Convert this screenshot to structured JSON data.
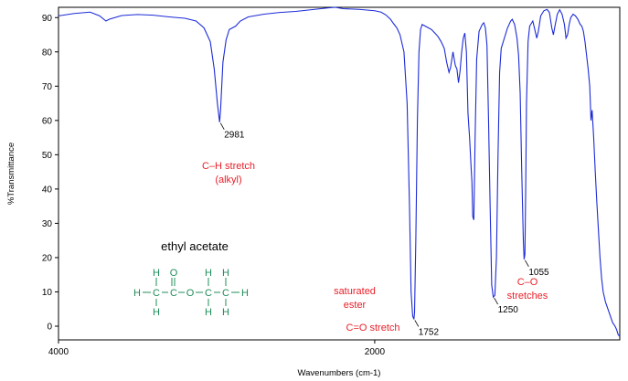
{
  "chart_data": {
    "type": "line",
    "title": "",
    "xlabel": "Wavenumbers (cm-1)",
    "ylabel": "%Transmittance",
    "xlim": [
      4000,
      450
    ],
    "ylim": [
      -4,
      93
    ],
    "x_ticks": [
      {
        "value": 4000,
        "label": "4000"
      },
      {
        "value": 2000,
        "label": "2000"
      }
    ],
    "y_ticks": [
      0,
      10,
      20,
      30,
      40,
      50,
      60,
      70,
      80,
      90
    ],
    "grid": false,
    "colors": {
      "line": "#1c2bd6",
      "annotation": "#e8202a",
      "molecule": "#1f8c5a"
    },
    "series": [
      {
        "name": "",
        "points": [
          [
            4000,
            90.5
          ],
          [
            3900,
            91.2
          ],
          [
            3800,
            91.6
          ],
          [
            3740,
            90.5
          ],
          [
            3700,
            89.0
          ],
          [
            3680,
            89.5
          ],
          [
            3600,
            90.6
          ],
          [
            3500,
            90.9
          ],
          [
            3400,
            90.7
          ],
          [
            3300,
            90.2
          ],
          [
            3200,
            89.8
          ],
          [
            3130,
            89.0
          ],
          [
            3080,
            87.0
          ],
          [
            3040,
            83.0
          ],
          [
            3015,
            75.0
          ],
          [
            2995,
            65.0
          ],
          [
            2985,
            61.0
          ],
          [
            2981,
            59.5
          ],
          [
            2975,
            63.0
          ],
          [
            2960,
            77.0
          ],
          [
            2940,
            83.5
          ],
          [
            2920,
            86.5
          ],
          [
            2900,
            87.0
          ],
          [
            2880,
            87.5
          ],
          [
            2850,
            89.0
          ],
          [
            2800,
            90.2
          ],
          [
            2700,
            91.0
          ],
          [
            2600,
            91.5
          ],
          [
            2500,
            91.8
          ],
          [
            2400,
            92.3
          ],
          [
            2300,
            92.8
          ],
          [
            2250,
            93.0
          ],
          [
            2200,
            92.6
          ],
          [
            2100,
            92.4
          ],
          [
            2000,
            92.0
          ],
          [
            1960,
            91.6
          ],
          [
            1930,
            90.8
          ],
          [
            1900,
            89.5
          ],
          [
            1880,
            88.2
          ],
          [
            1860,
            87.0
          ],
          [
            1840,
            85.0
          ],
          [
            1815,
            80.0
          ],
          [
            1795,
            65.0
          ],
          [
            1780,
            35.0
          ],
          [
            1770,
            10.0
          ],
          [
            1760,
            3.0
          ],
          [
            1752,
            2.0
          ],
          [
            1748,
            4.0
          ],
          [
            1740,
            25.0
          ],
          [
            1730,
            60.0
          ],
          [
            1720,
            80.0
          ],
          [
            1710,
            86.5
          ],
          [
            1700,
            88.0
          ],
          [
            1680,
            87.5
          ],
          [
            1660,
            87.0
          ],
          [
            1640,
            86.5
          ],
          [
            1620,
            85.5
          ],
          [
            1600,
            84.5
          ],
          [
            1580,
            83.0
          ],
          [
            1560,
            81.0
          ],
          [
            1545,
            77.0
          ],
          [
            1530,
            74.0
          ],
          [
            1520,
            75.5
          ],
          [
            1505,
            80.0
          ],
          [
            1490,
            76.0
          ],
          [
            1480,
            75.0
          ],
          [
            1470,
            71.0
          ],
          [
            1460,
            74.5
          ],
          [
            1450,
            80.0
          ],
          [
            1440,
            84.0
          ],
          [
            1430,
            85.5
          ],
          [
            1420,
            80.0
          ],
          [
            1410,
            62.0
          ],
          [
            1400,
            55.0
          ],
          [
            1390,
            46.0
          ],
          [
            1385,
            42.0
          ],
          [
            1380,
            32.0
          ],
          [
            1373,
            31.0
          ],
          [
            1365,
            55.0
          ],
          [
            1355,
            78.0
          ],
          [
            1340,
            86.0
          ],
          [
            1320,
            88.0
          ],
          [
            1310,
            88.5
          ],
          [
            1300,
            87.0
          ],
          [
            1290,
            82.0
          ],
          [
            1280,
            60.0
          ],
          [
            1270,
            35.0
          ],
          [
            1260,
            12.0
          ],
          [
            1250,
            8.5
          ],
          [
            1240,
            9.0
          ],
          [
            1230,
            20.0
          ],
          [
            1220,
            50.0
          ],
          [
            1210,
            74.0
          ],
          [
            1200,
            81.0
          ],
          [
            1180,
            84.0
          ],
          [
            1160,
            87.0
          ],
          [
            1140,
            89.0
          ],
          [
            1130,
            89.5
          ],
          [
            1115,
            88.0
          ],
          [
            1100,
            84.0
          ],
          [
            1090,
            79.0
          ],
          [
            1080,
            68.0
          ],
          [
            1070,
            45.0
          ],
          [
            1060,
            25.0
          ],
          [
            1055,
            19.5
          ],
          [
            1050,
            21.0
          ],
          [
            1045,
            40.0
          ],
          [
            1040,
            65.0
          ],
          [
            1030,
            83.0
          ],
          [
            1020,
            87.5
          ],
          [
            1000,
            89.0
          ],
          [
            985,
            86.0
          ],
          [
            975,
            84.0
          ],
          [
            965,
            86.0
          ],
          [
            950,
            90.5
          ],
          [
            930,
            92.0
          ],
          [
            910,
            92.4
          ],
          [
            895,
            91.5
          ],
          [
            880,
            87.0
          ],
          [
            870,
            85.0
          ],
          [
            860,
            87.5
          ],
          [
            845,
            91.0
          ],
          [
            830,
            92.3
          ],
          [
            815,
            91.0
          ],
          [
            800,
            88.0
          ],
          [
            790,
            84.0
          ],
          [
            780,
            85.0
          ],
          [
            770,
            88.0
          ],
          [
            760,
            90.0
          ],
          [
            745,
            91.0
          ],
          [
            730,
            90.5
          ],
          [
            715,
            89.5
          ],
          [
            700,
            88.0
          ],
          [
            690,
            87.5
          ],
          [
            680,
            86.0
          ],
          [
            670,
            83.0
          ],
          [
            660,
            79.0
          ],
          [
            650,
            75.0
          ],
          [
            640,
            70.0
          ],
          [
            632,
            60.0
          ],
          [
            625,
            63.0
          ],
          [
            615,
            55.0
          ],
          [
            605,
            45.0
          ],
          [
            595,
            36.0
          ],
          [
            585,
            28.0
          ],
          [
            575,
            20.0
          ],
          [
            565,
            14.0
          ],
          [
            555,
            10.0
          ],
          [
            540,
            7.0
          ],
          [
            525,
            5.0
          ],
          [
            510,
            3.0
          ],
          [
            495,
            1.0
          ],
          [
            480,
            0.0
          ],
          [
            470,
            -1.0
          ],
          [
            460,
            -2.5
          ],
          [
            450,
            -3.0
          ]
        ]
      }
    ],
    "peak_labels": [
      {
        "x": 2981,
        "y": 59.5,
        "text": "2981"
      },
      {
        "x": 1752,
        "y": 2.0,
        "text": "1752"
      },
      {
        "x": 1250,
        "y": 8.5,
        "text": "1250"
      },
      {
        "x": 1055,
        "y": 19.5,
        "text": "1055"
      }
    ],
    "annotations": [
      {
        "lines": [
          "C–H stretch",
          "(alkyl)"
        ]
      },
      {
        "lines": [
          "saturated",
          "ester"
        ]
      },
      {
        "lines": [
          "C=O stretch"
        ]
      },
      {
        "lines": [
          "C–O",
          "stretches"
        ]
      }
    ],
    "compound": {
      "name": "ethyl acetate",
      "atoms": {
        "H": "H",
        "C": "C",
        "O": "O"
      }
    }
  }
}
